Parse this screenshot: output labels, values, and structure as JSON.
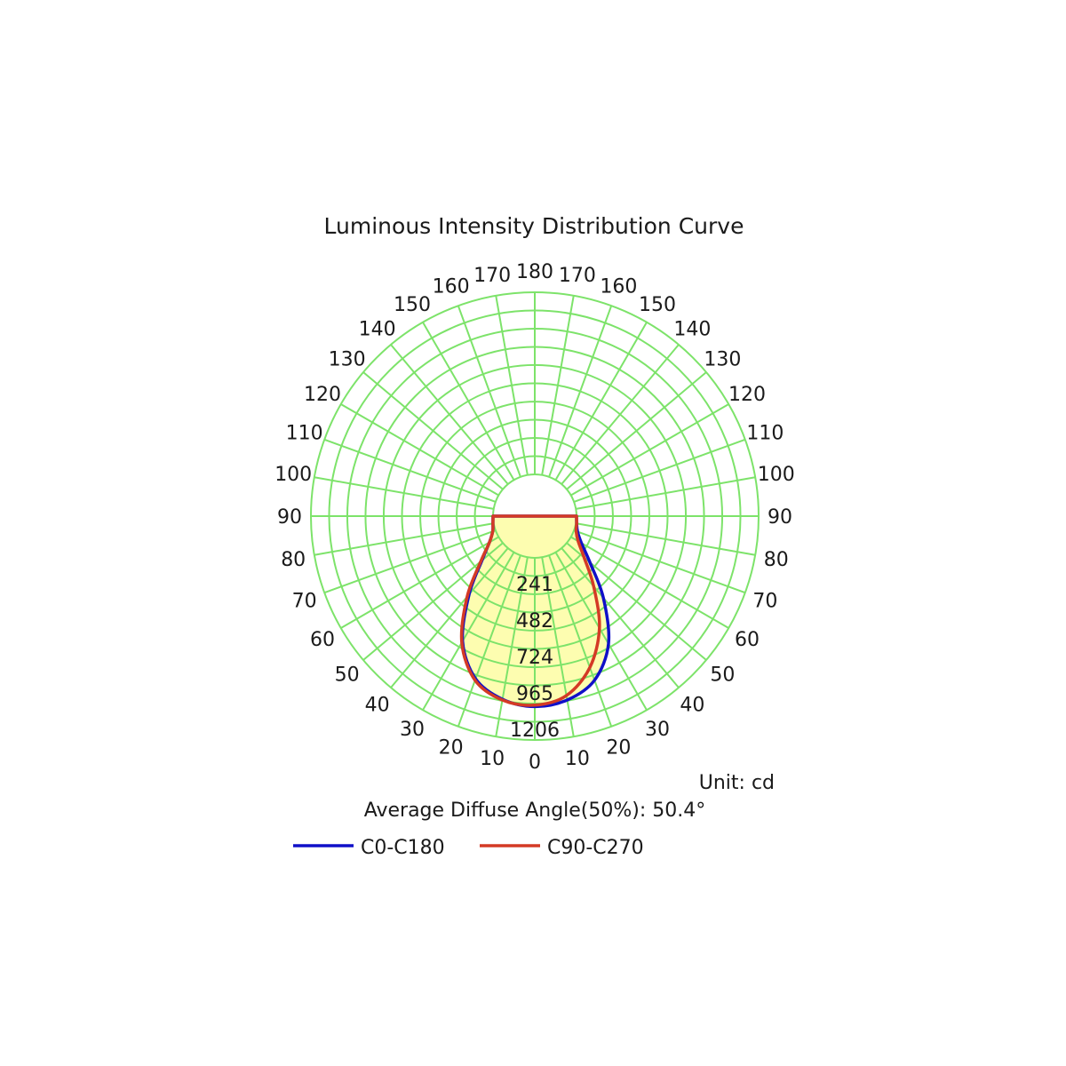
{
  "chart_data": {
    "type": "polar",
    "title": "Luminous Intensity Distribution Curve",
    "unit_label": "Unit: cd",
    "diffuse_label": "Average Diffuse Angle(50%): 50.4°",
    "radial_ticks": [
      241,
      482,
      724,
      965,
      1206
    ],
    "radial_max": 1206,
    "angle_step": 10,
    "angle_labels_left": [
      "0",
      "10",
      "20",
      "30",
      "40",
      "50",
      "60",
      "70",
      "80",
      "90",
      "100",
      "110",
      "120",
      "130",
      "140",
      "150",
      "160",
      "170",
      "180"
    ],
    "angle_labels_right": [
      "10",
      "20",
      "30",
      "40",
      "50",
      "60",
      "70",
      "80",
      "90",
      "100",
      "110",
      "120",
      "130",
      "140",
      "150",
      "160",
      "170"
    ],
    "grid_color": "#7de36a",
    "fill_color": "#fdfdb0",
    "series": [
      {
        "name": "C0-C180",
        "color": "#1010c8",
        "right": {
          "angles": [
            0,
            10,
            20,
            30,
            40,
            50,
            60,
            70,
            80,
            90
          ],
          "values": [
            985,
            960,
            880,
            700,
            430,
            200,
            80,
            25,
            5,
            0
          ]
        },
        "left": {
          "angles": [
            0,
            10,
            20,
            30,
            40,
            50,
            60,
            70,
            80,
            90
          ],
          "values": [
            985,
            955,
            870,
            680,
            400,
            180,
            70,
            20,
            5,
            0
          ]
        }
      },
      {
        "name": "C90-C270",
        "color": "#d43a25",
        "right": {
          "angles": [
            0,
            10,
            20,
            30,
            40,
            50,
            60,
            70,
            80,
            90
          ],
          "values": [
            975,
            930,
            790,
            580,
            330,
            150,
            55,
            15,
            5,
            0
          ]
        },
        "left": {
          "angles": [
            0,
            10,
            20,
            30,
            40,
            50,
            60,
            70,
            80,
            90
          ],
          "values": [
            975,
            960,
            880,
            690,
            420,
            190,
            70,
            20,
            5,
            0
          ]
        }
      }
    ]
  }
}
